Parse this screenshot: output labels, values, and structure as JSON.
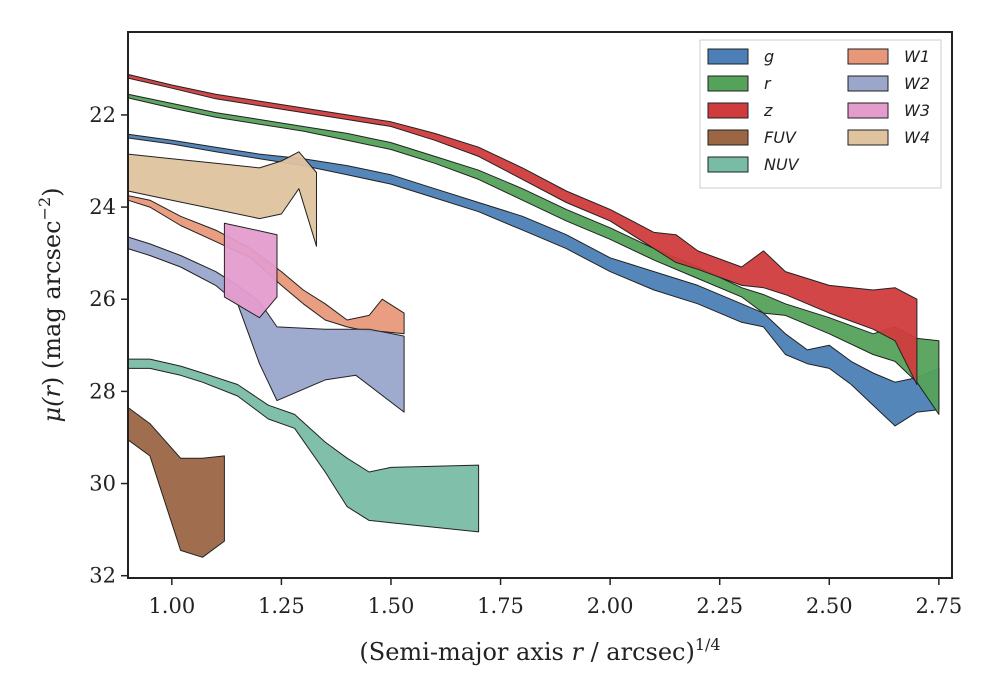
{
  "chart_data": {
    "type": "area",
    "xlabel": "(Semi-major axis r / arcsec)",
    "xlabel_parts": {
      "pre": "(Semi-major axis ",
      "var": "r",
      "mid": " / arcsec)",
      "sup": "1/4"
    },
    "ylabel": "μ(r) (mag arcsec⁻²)",
    "ylabel_parts": {
      "mu": "μ(",
      "var": "r",
      "post": ") (mag arcsec",
      "sup": "−2",
      "close": ")"
    },
    "xlim": [
      0.9,
      2.78
    ],
    "ylim": [
      32.05,
      20.2
    ],
    "y_inverted": true,
    "x_ticks": [
      1.0,
      1.25,
      1.5,
      1.75,
      2.0,
      2.25,
      2.5,
      2.75
    ],
    "x_tick_labels": [
      "1.00",
      "1.25",
      "1.50",
      "1.75",
      "2.00",
      "2.25",
      "2.50",
      "2.75"
    ],
    "y_ticks": [
      22,
      24,
      26,
      28,
      30,
      32
    ],
    "y_tick_labels": [
      "22",
      "24",
      "26",
      "28",
      "30",
      "32"
    ],
    "legend_position": "top-right",
    "legend_columns": 2,
    "series": [
      {
        "name": "g",
        "color": "#4c7fb5",
        "upper": [
          [
            0.9,
            22.42
          ],
          [
            1.0,
            22.55
          ],
          [
            1.1,
            22.7
          ],
          [
            1.2,
            22.85
          ],
          [
            1.3,
            22.95
          ],
          [
            1.4,
            23.1
          ],
          [
            1.5,
            23.3
          ],
          [
            1.6,
            23.6
          ],
          [
            1.7,
            23.9
          ],
          [
            1.8,
            24.2
          ],
          [
            1.9,
            24.6
          ],
          [
            2.0,
            25.1
          ],
          [
            2.1,
            25.4
          ],
          [
            2.2,
            25.7
          ],
          [
            2.3,
            26.1
          ],
          [
            2.35,
            26.3
          ],
          [
            2.4,
            26.75
          ],
          [
            2.45,
            27.1
          ],
          [
            2.5,
            27.0
          ],
          [
            2.55,
            27.35
          ],
          [
            2.6,
            27.6
          ],
          [
            2.65,
            27.8
          ],
          [
            2.7,
            27.7
          ],
          [
            2.75,
            27.5
          ]
        ],
        "lower": [
          [
            0.9,
            22.5
          ],
          [
            1.0,
            22.63
          ],
          [
            1.1,
            22.8
          ],
          [
            1.2,
            22.95
          ],
          [
            1.3,
            23.1
          ],
          [
            1.4,
            23.3
          ],
          [
            1.5,
            23.5
          ],
          [
            1.6,
            23.8
          ],
          [
            1.7,
            24.1
          ],
          [
            1.8,
            24.5
          ],
          [
            1.9,
            24.9
          ],
          [
            2.0,
            25.4
          ],
          [
            2.1,
            25.8
          ],
          [
            2.2,
            26.1
          ],
          [
            2.3,
            26.5
          ],
          [
            2.35,
            26.6
          ],
          [
            2.4,
            27.2
          ],
          [
            2.45,
            27.4
          ],
          [
            2.5,
            27.5
          ],
          [
            2.55,
            27.85
          ],
          [
            2.6,
            28.3
          ],
          [
            2.65,
            28.75
          ],
          [
            2.7,
            28.45
          ],
          [
            2.75,
            28.4
          ]
        ]
      },
      {
        "name": "r",
        "color": "#55a25a",
        "upper": [
          [
            0.9,
            21.55
          ],
          [
            1.0,
            21.75
          ],
          [
            1.1,
            21.95
          ],
          [
            1.2,
            22.1
          ],
          [
            1.3,
            22.25
          ],
          [
            1.4,
            22.4
          ],
          [
            1.5,
            22.6
          ],
          [
            1.6,
            22.9
          ],
          [
            1.7,
            23.2
          ],
          [
            1.8,
            23.6
          ],
          [
            1.9,
            24.05
          ],
          [
            2.0,
            24.45
          ],
          [
            2.1,
            24.9
          ],
          [
            2.2,
            25.3
          ],
          [
            2.3,
            25.75
          ],
          [
            2.35,
            25.9
          ],
          [
            2.4,
            26.1
          ],
          [
            2.5,
            26.4
          ],
          [
            2.6,
            26.75
          ],
          [
            2.65,
            26.6
          ],
          [
            2.7,
            26.85
          ],
          [
            2.75,
            26.9
          ]
        ],
        "lower": [
          [
            0.9,
            21.63
          ],
          [
            1.0,
            21.85
          ],
          [
            1.1,
            22.05
          ],
          [
            1.2,
            22.2
          ],
          [
            1.3,
            22.35
          ],
          [
            1.4,
            22.55
          ],
          [
            1.5,
            22.75
          ],
          [
            1.6,
            23.05
          ],
          [
            1.7,
            23.4
          ],
          [
            1.8,
            23.85
          ],
          [
            1.9,
            24.3
          ],
          [
            2.0,
            24.7
          ],
          [
            2.1,
            25.15
          ],
          [
            2.2,
            25.55
          ],
          [
            2.3,
            25.95
          ],
          [
            2.35,
            26.3
          ],
          [
            2.4,
            26.35
          ],
          [
            2.5,
            26.75
          ],
          [
            2.6,
            27.2
          ],
          [
            2.65,
            27.35
          ],
          [
            2.7,
            27.8
          ],
          [
            2.75,
            28.5
          ]
        ]
      },
      {
        "name": "z",
        "color": "#d03c3d",
        "upper": [
          [
            0.9,
            21.12
          ],
          [
            1.0,
            21.35
          ],
          [
            1.1,
            21.55
          ],
          [
            1.2,
            21.7
          ],
          [
            1.3,
            21.85
          ],
          [
            1.4,
            22.0
          ],
          [
            1.5,
            22.15
          ],
          [
            1.6,
            22.4
          ],
          [
            1.7,
            22.7
          ],
          [
            1.8,
            23.15
          ],
          [
            1.9,
            23.65
          ],
          [
            2.0,
            24.05
          ],
          [
            2.1,
            24.55
          ],
          [
            2.15,
            24.6
          ],
          [
            2.2,
            24.95
          ],
          [
            2.3,
            25.3
          ],
          [
            2.35,
            24.95
          ],
          [
            2.4,
            25.4
          ],
          [
            2.5,
            25.7
          ],
          [
            2.6,
            25.8
          ],
          [
            2.65,
            25.75
          ],
          [
            2.7,
            26.0
          ]
        ],
        "lower": [
          [
            0.9,
            21.2
          ],
          [
            1.0,
            21.42
          ],
          [
            1.1,
            21.65
          ],
          [
            1.2,
            21.8
          ],
          [
            1.3,
            21.95
          ],
          [
            1.4,
            22.1
          ],
          [
            1.5,
            22.25
          ],
          [
            1.6,
            22.55
          ],
          [
            1.7,
            22.9
          ],
          [
            1.8,
            23.4
          ],
          [
            1.9,
            23.9
          ],
          [
            2.0,
            24.3
          ],
          [
            2.1,
            24.9
          ],
          [
            2.15,
            25.2
          ],
          [
            2.2,
            25.35
          ],
          [
            2.3,
            25.7
          ],
          [
            2.35,
            25.75
          ],
          [
            2.4,
            25.9
          ],
          [
            2.5,
            26.3
          ],
          [
            2.6,
            26.65
          ],
          [
            2.65,
            26.9
          ],
          [
            2.7,
            27.85
          ]
        ]
      },
      {
        "name": "FUV",
        "color": "#9b6644",
        "upper": [
          [
            0.9,
            28.35
          ],
          [
            0.95,
            28.7
          ],
          [
            1.02,
            29.45
          ],
          [
            1.07,
            29.45
          ],
          [
            1.12,
            29.4
          ]
        ],
        "lower": [
          [
            0.9,
            29.05
          ],
          [
            0.95,
            29.4
          ],
          [
            1.02,
            31.45
          ],
          [
            1.07,
            31.6
          ],
          [
            1.12,
            31.25
          ]
        ]
      },
      {
        "name": "NUV",
        "color": "#79bca5",
        "upper": [
          [
            0.9,
            27.3
          ],
          [
            0.95,
            27.3
          ],
          [
            1.02,
            27.45
          ],
          [
            1.07,
            27.6
          ],
          [
            1.15,
            27.85
          ],
          [
            1.22,
            28.3
          ],
          [
            1.28,
            28.5
          ],
          [
            1.35,
            29.1
          ],
          [
            1.4,
            29.45
          ],
          [
            1.45,
            29.75
          ],
          [
            1.5,
            29.65
          ],
          [
            1.7,
            29.6
          ]
        ],
        "lower": [
          [
            0.9,
            27.5
          ],
          [
            0.95,
            27.5
          ],
          [
            1.02,
            27.65
          ],
          [
            1.07,
            27.8
          ],
          [
            1.15,
            28.1
          ],
          [
            1.22,
            28.6
          ],
          [
            1.28,
            28.8
          ],
          [
            1.35,
            29.75
          ],
          [
            1.4,
            30.5
          ],
          [
            1.45,
            30.8
          ],
          [
            1.5,
            30.85
          ],
          [
            1.7,
            31.05
          ]
        ]
      },
      {
        "name": "W1",
        "color": "#e8987a",
        "upper": [
          [
            0.9,
            23.75
          ],
          [
            0.95,
            23.85
          ],
          [
            1.02,
            24.2
          ],
          [
            1.1,
            24.5
          ],
          [
            1.18,
            24.9
          ],
          [
            1.25,
            25.4
          ],
          [
            1.3,
            25.8
          ],
          [
            1.35,
            26.1
          ],
          [
            1.4,
            26.45
          ],
          [
            1.45,
            26.35
          ],
          [
            1.48,
            26.0
          ],
          [
            1.53,
            26.3
          ]
        ],
        "lower": [
          [
            0.9,
            23.85
          ],
          [
            0.95,
            24.0
          ],
          [
            1.02,
            24.4
          ],
          [
            1.1,
            24.75
          ],
          [
            1.18,
            25.1
          ],
          [
            1.25,
            25.7
          ],
          [
            1.3,
            26.1
          ],
          [
            1.35,
            26.45
          ],
          [
            1.4,
            26.6
          ],
          [
            1.45,
            26.7
          ],
          [
            1.48,
            26.7
          ],
          [
            1.53,
            26.75
          ]
        ]
      },
      {
        "name": "W2",
        "color": "#9aa7cb",
        "upper": [
          [
            0.9,
            24.65
          ],
          [
            0.95,
            24.8
          ],
          [
            1.02,
            25.05
          ],
          [
            1.1,
            25.4
          ],
          [
            1.15,
            25.7
          ],
          [
            1.2,
            26.05
          ],
          [
            1.24,
            26.6
          ],
          [
            1.35,
            26.65
          ],
          [
            1.45,
            26.65
          ],
          [
            1.53,
            26.8
          ]
        ],
        "lower": [
          [
            0.9,
            24.9
          ],
          [
            0.95,
            25.05
          ],
          [
            1.02,
            25.3
          ],
          [
            1.1,
            25.7
          ],
          [
            1.15,
            26.1
          ],
          [
            1.2,
            27.4
          ],
          [
            1.24,
            28.2
          ],
          [
            1.35,
            27.75
          ],
          [
            1.42,
            27.65
          ],
          [
            1.53,
            28.45
          ]
        ]
      },
      {
        "name": "W3",
        "color": "#e49ccc",
        "upper": [
          [
            1.12,
            24.35
          ],
          [
            1.24,
            24.6
          ]
        ],
        "lower": [
          [
            1.12,
            25.95
          ],
          [
            1.2,
            26.4
          ],
          [
            1.24,
            25.95
          ]
        ]
      },
      {
        "name": "W4",
        "color": "#dfc39f",
        "upper": [
          [
            0.9,
            22.85
          ],
          [
            1.0,
            22.95
          ],
          [
            1.1,
            23.05
          ],
          [
            1.2,
            23.15
          ],
          [
            1.25,
            23.0
          ],
          [
            1.29,
            22.8
          ],
          [
            1.33,
            23.25
          ]
        ],
        "lower": [
          [
            0.9,
            23.65
          ],
          [
            1.0,
            23.85
          ],
          [
            1.1,
            24.05
          ],
          [
            1.2,
            24.25
          ],
          [
            1.25,
            24.15
          ],
          [
            1.29,
            23.6
          ],
          [
            1.33,
            24.85
          ]
        ]
      }
    ]
  }
}
